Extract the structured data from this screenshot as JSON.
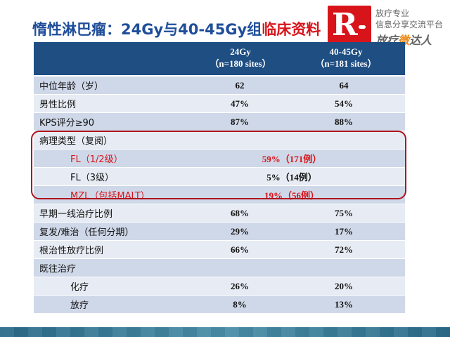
{
  "title": {
    "main": "惰性淋巴瘤：24Gy与40-45Gy组",
    "highlight": "临床资料"
  },
  "logo": {
    "letter": "R",
    "line1": "放疗专业",
    "line2": "信息分享交流平台",
    "line3_pre": "放疗",
    "line3_hl": "微",
    "line3_post": "达人",
    "colors": {
      "brand": "#d8141b",
      "accent": "#e88a1c"
    }
  },
  "table": {
    "header": {
      "col1_line1": "24Gy",
      "col1_line2": "（n=180 sites）",
      "col2_line1": "40-45Gy",
      "col2_line2": "（n=181 sites）"
    },
    "rows": [
      {
        "label": "中位年龄（岁）",
        "v1": "62",
        "v2": "64"
      },
      {
        "label": "男性比例",
        "v1": "47%",
        "v2": "54%"
      },
      {
        "label": "KPS评分≥90",
        "v1": "87%",
        "v2": "88%"
      },
      {
        "label": "病理类型（复阅）",
        "v1": "",
        "v2": ""
      },
      {
        "label": "FL（1/2级）",
        "merged": "59%（171例）"
      },
      {
        "label": "FL（3级）",
        "merged": "5%（14例）"
      },
      {
        "label": "MZL（包括MALT）",
        "merged": "19%（56例）"
      },
      {
        "label": "早期一线治疗比例",
        "v1": "68%",
        "v2": "75%"
      },
      {
        "label": "复发/难治（任何分期）",
        "v1": "29%",
        "v2": "17%"
      },
      {
        "label": "根治性放疗比例",
        "v1": "66%",
        "v2": "72%"
      },
      {
        "label": "既往治疗",
        "v1": "",
        "v2": ""
      },
      {
        "label": "化疗",
        "v1": "26%",
        "v2": "20%"
      },
      {
        "label": "放疗",
        "v1": "8%",
        "v2": "13%"
      }
    ],
    "colors": {
      "header_bg": "#1e4e82",
      "row_odd": "#cfd8e8",
      "row_even": "#e7ecf4",
      "highlight_border": "#b0131c",
      "highlight_text": "#d8141b"
    }
  }
}
